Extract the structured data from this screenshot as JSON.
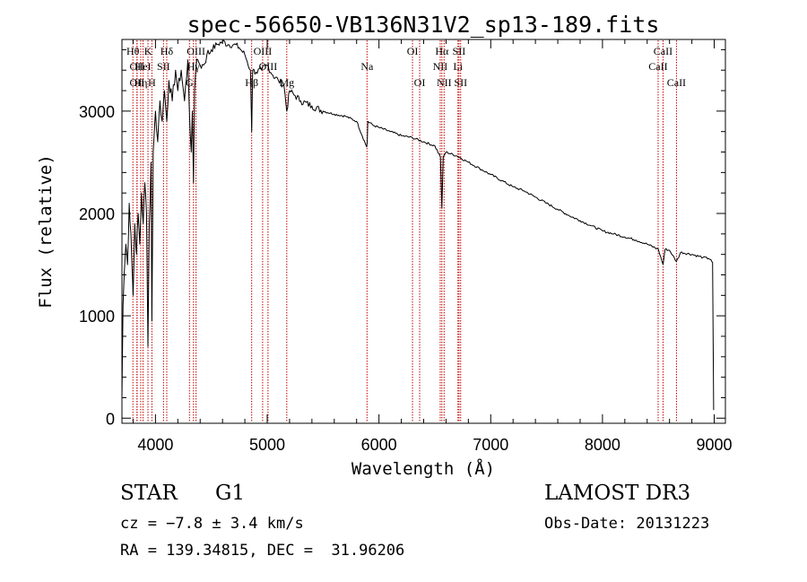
{
  "chart_data": {
    "type": "line",
    "title": "spec-56650-VB136N31V2_sp13-189.fits",
    "xlabel": "Wavelength (Å)",
    "ylabel": "Flux (relative)",
    "xlim": [
      3700,
      9100
    ],
    "ylim": [
      -50,
      3700
    ],
    "xticks": [
      4000,
      5000,
      6000,
      7000,
      8000,
      9000
    ],
    "xtick_labels": [
      "4000",
      "5000",
      "6000",
      "7000",
      "8000",
      "9000"
    ],
    "yticks": [
      0,
      1000,
      2000,
      3000
    ],
    "ytick_labels": [
      "0",
      "1000",
      "2000",
      "3000"
    ],
    "line_color": "#000000",
    "marker_color": "#c00000",
    "grid": false,
    "series": [
      {
        "name": "flux",
        "x": [
          3700,
          3710,
          3720,
          3735,
          3750,
          3765,
          3780,
          3800,
          3815,
          3830,
          3845,
          3860,
          3875,
          3890,
          3905,
          3920,
          3933,
          3945,
          3960,
          3968,
          3980,
          4000,
          4020,
          4040,
          4060,
          4080,
          4101,
          4120,
          4150,
          4180,
          4200,
          4230,
          4260,
          4290,
          4310,
          4320,
          4330,
          4340,
          4350,
          4360,
          4380,
          4400,
          4430,
          4460,
          4500,
          4550,
          4600,
          4650,
          4700,
          4750,
          4800,
          4850,
          4861,
          4870,
          4900,
          4950,
          5000,
          5050,
          5100,
          5150,
          5175,
          5200,
          5250,
          5300,
          5400,
          5500,
          5600,
          5700,
          5800,
          5890,
          5895,
          5900,
          5950,
          6000,
          6100,
          6200,
          6300,
          6400,
          6500,
          6550,
          6563,
          6575,
          6600,
          6700,
          6800,
          6900,
          7000,
          7100,
          7200,
          7300,
          7400,
          7500,
          7600,
          7700,
          7800,
          7900,
          8000,
          8100,
          8200,
          8300,
          8400,
          8500,
          8542,
          8560,
          8600,
          8662,
          8700,
          8800,
          8900,
          8950,
          8970,
          8985,
          8995
        ],
        "y": [
          200,
          1100,
          1400,
          1700,
          1500,
          2100,
          1800,
          1200,
          1900,
          1600,
          2000,
          1700,
          2200,
          1900,
          2300,
          2000,
          700,
          1900,
          2500,
          950,
          2600,
          3000,
          2700,
          3100,
          2900,
          3200,
          2900,
          3300,
          3100,
          3400,
          3200,
          3400,
          3100,
          3500,
          2800,
          2600,
          3000,
          2300,
          3200,
          3400,
          3500,
          3450,
          3450,
          3550,
          3600,
          3650,
          3680,
          3650,
          3650,
          3620,
          3550,
          3400,
          2800,
          3400,
          3380,
          3400,
          3450,
          3350,
          3300,
          3250,
          3000,
          3200,
          3150,
          3100,
          3050,
          3000,
          2970,
          2950,
          2900,
          2650,
          2700,
          2900,
          2860,
          2840,
          2800,
          2760,
          2740,
          2700,
          2660,
          2550,
          2050,
          2550,
          2600,
          2560,
          2500,
          2440,
          2380,
          2320,
          2260,
          2220,
          2160,
          2100,
          2040,
          1980,
          1930,
          1880,
          1830,
          1800,
          1770,
          1740,
          1700,
          1650,
          1500,
          1650,
          1640,
          1530,
          1620,
          1600,
          1570,
          1560,
          1550,
          1520,
          80
        ]
      }
    ],
    "line_markers": [
      {
        "wl": 3798,
        "label": "Hθ",
        "row": 0
      },
      {
        "wl": 3835,
        "label": "OII",
        "row": 1
      },
      {
        "wl": 3835,
        "label": "OII",
        "row": 2
      },
      {
        "wl": 3868,
        "label": "Hη",
        "row": 2
      },
      {
        "wl": 3889,
        "label": "HeI",
        "row": 1
      },
      {
        "wl": 3933,
        "label": "K",
        "row": 0
      },
      {
        "wl": 3968,
        "label": "H",
        "row": 2
      },
      {
        "wl": 4072,
        "label": "SII",
        "row": 1
      },
      {
        "wl": 4101,
        "label": "Hδ",
        "row": 0
      },
      {
        "wl": 4304,
        "label": "G",
        "row": 2
      },
      {
        "wl": 4340,
        "label": "Hγ",
        "row": 1
      },
      {
        "wl": 4363,
        "label": "OIII",
        "row": 0
      },
      {
        "wl": 4861,
        "label": "Hβ",
        "row": 2
      },
      {
        "wl": 4959,
        "label": "OIII",
        "row": 0
      },
      {
        "wl": 5007,
        "label": "OIII",
        "row": 1
      },
      {
        "wl": 5175,
        "label": "Mg",
        "row": 2
      },
      {
        "wl": 5893,
        "label": "Na",
        "row": 1
      },
      {
        "wl": 6300,
        "label": "OI",
        "row": 0
      },
      {
        "wl": 6364,
        "label": "OI",
        "row": 2
      },
      {
        "wl": 6548,
        "label": "NII",
        "row": 1
      },
      {
        "wl": 6563,
        "label": "Hα",
        "row": 0
      },
      {
        "wl": 6583,
        "label": "NII",
        "row": 2
      },
      {
        "wl": 6707,
        "label": "Li",
        "row": 1
      },
      {
        "wl": 6716,
        "label": "SII",
        "row": 0
      },
      {
        "wl": 6731,
        "label": "SII",
        "row": 2
      },
      {
        "wl": 8498,
        "label": "CaII",
        "row": 1
      },
      {
        "wl": 8542,
        "label": "CaII",
        "row": 0
      },
      {
        "wl": 8662,
        "label": "CaII",
        "row": 2
      }
    ]
  },
  "info": {
    "object_type": "STAR",
    "subclass": "G1",
    "survey": "LAMOST DR3",
    "cz": "cz = −7.8 ± 3.4 km/s",
    "obs_date": "Obs-Date: 20131223",
    "coords": "RA = 139.34815, DEC =  31.96206"
  }
}
